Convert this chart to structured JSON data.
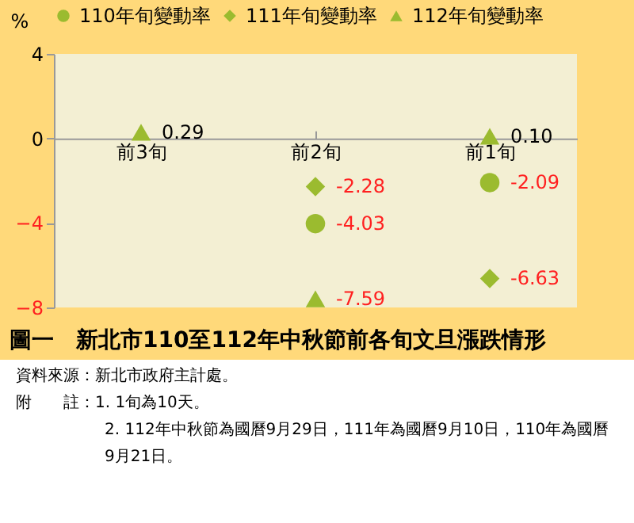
{
  "chart_data": {
    "type": "scatter",
    "title": "圖一　新北市110至112年中秋節前各旬文旦漲跌情形",
    "ylabel": "%",
    "categories": [
      "前3旬",
      "前2旬",
      "前1旬"
    ],
    "series": [
      {
        "name": "110年旬變動率",
        "color": "#9bbb2f",
        "marker": "circle",
        "values": [
          null,
          -4.03,
          -2.09
        ],
        "value_labels": [
          null,
          "-4.03",
          "-2.09"
        ]
      },
      {
        "name": "111年旬變動率",
        "color": "#9bbb2f",
        "marker": "diamond",
        "values": [
          null,
          -2.28,
          -6.63
        ],
        "value_labels": [
          null,
          "-2.28",
          "-6.63"
        ]
      },
      {
        "name": "112年旬變動率",
        "color": "#9bbb2f",
        "marker": "triangle",
        "values": [
          0.29,
          -7.59,
          0.1
        ],
        "value_labels": [
          "0.29",
          "-7.59",
          "0.10"
        ]
      }
    ],
    "ylim": [
      -8,
      4
    ],
    "yticks": [
      -8,
      -4,
      0,
      4
    ],
    "grid": false,
    "legend": "top",
    "annotations": [
      "資料來源：新北市政府主計處。",
      "附　　註：1. 1旬為10天。",
      "2. 112年中秋節為國曆9月29日，111年為國曆9月10日，110年為國曆9月21日。"
    ]
  }
}
